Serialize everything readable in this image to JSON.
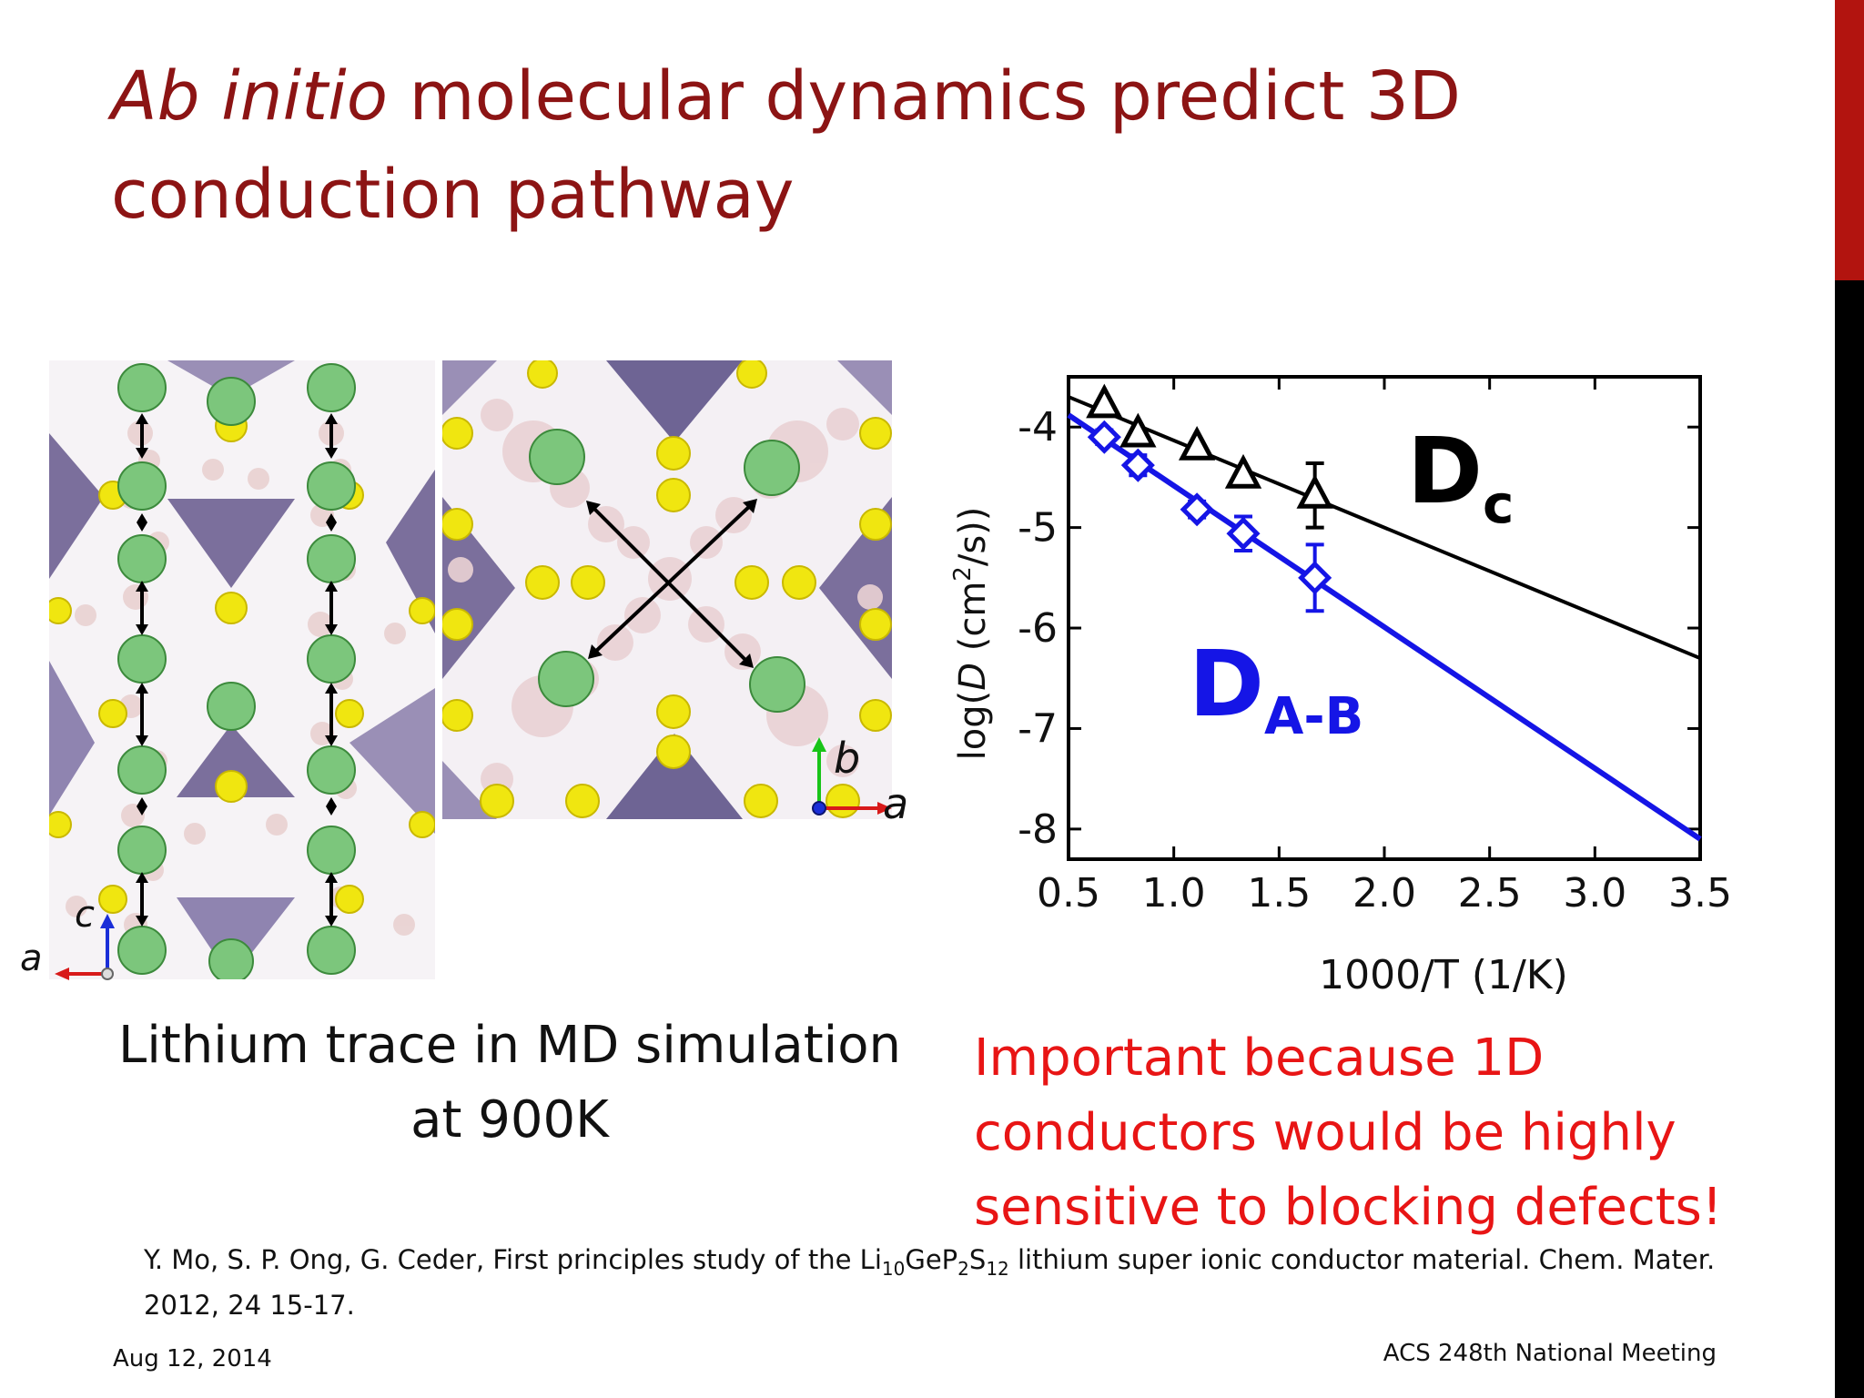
{
  "slide": {
    "title_italic": "Ab initio",
    "title_rest": " molecular dynamics predict 3D conduction pathway",
    "md_caption_line1": "Lithium trace in MD simulation",
    "md_caption_line2": "at 900K",
    "note_line1": "Important because 1D",
    "note_line2": "conductors would be highly",
    "note_line3": "sensitive to blocking defects!",
    "reference_part1": "Y. Mo, S. P. Ong, G. Ceder, First principles study of the Li",
    "reference_sub1": "10",
    "reference_part2": "GeP",
    "reference_sub2": "2",
    "reference_part3": "S",
    "reference_sub3": "12",
    "reference_part4": " lithium super ionic conductor material. Chem. Mater. 2012, 24 15-17.",
    "footer_date": "Aug 12, 2014",
    "footer_event": "ACS 248th National Meeting",
    "accent_top_color": "#b2140f",
    "title_color": "#8c1414",
    "note_color": "#e81515"
  },
  "md_images": {
    "left_axes": {
      "vertical": "c",
      "horizontal": "a"
    },
    "right_axes": {
      "vertical": "b",
      "horizontal": "a"
    }
  },
  "chart_data": {
    "type": "scatter",
    "xlabel": "1000/T (1/K)",
    "ylabel_pre": "log(",
    "ylabel_var": "D",
    "ylabel_unit_pre": " (cm",
    "ylabel_sup": "2",
    "ylabel_unit_post": "/s))",
    "xlim": [
      0.5,
      3.5
    ],
    "ylim": [
      -8.3,
      -3.5
    ],
    "xticks": [
      0.5,
      1.0,
      1.5,
      2.0,
      2.5,
      3.0,
      3.5
    ],
    "xtick_labels": [
      "0.5",
      "1.0",
      "1.5",
      "2.0",
      "2.5",
      "3.0",
      "3.5"
    ],
    "yticks": [
      -4,
      -5,
      -6,
      -7,
      -8
    ],
    "ytick_labels": [
      "-4",
      "-5",
      "-6",
      "-7",
      "-8"
    ],
    "series": [
      {
        "name_main": "D",
        "name_sub": "c",
        "color": "#000000",
        "marker": "triangle",
        "x": [
          0.67,
          0.83,
          1.11,
          1.33,
          1.67
        ],
        "y": [
          -3.78,
          -4.07,
          -4.2,
          -4.48,
          -4.68
        ],
        "yerr": [
          0,
          0,
          0,
          0,
          0.32
        ],
        "fit": [
          [
            0.5,
            -3.7
          ],
          [
            3.5,
            -6.3
          ]
        ]
      },
      {
        "name_main": "D",
        "name_sub": "A-B",
        "color": "#1515e6",
        "marker": "diamond",
        "x": [
          0.67,
          0.83,
          1.11,
          1.33,
          1.67
        ],
        "y": [
          -4.1,
          -4.38,
          -4.82,
          -5.06,
          -5.5
        ],
        "yerr": [
          0.07,
          0.1,
          0.08,
          0.17,
          0.33
        ],
        "fit": [
          [
            0.5,
            -3.88
          ],
          [
            3.5,
            -8.1
          ]
        ]
      }
    ]
  }
}
